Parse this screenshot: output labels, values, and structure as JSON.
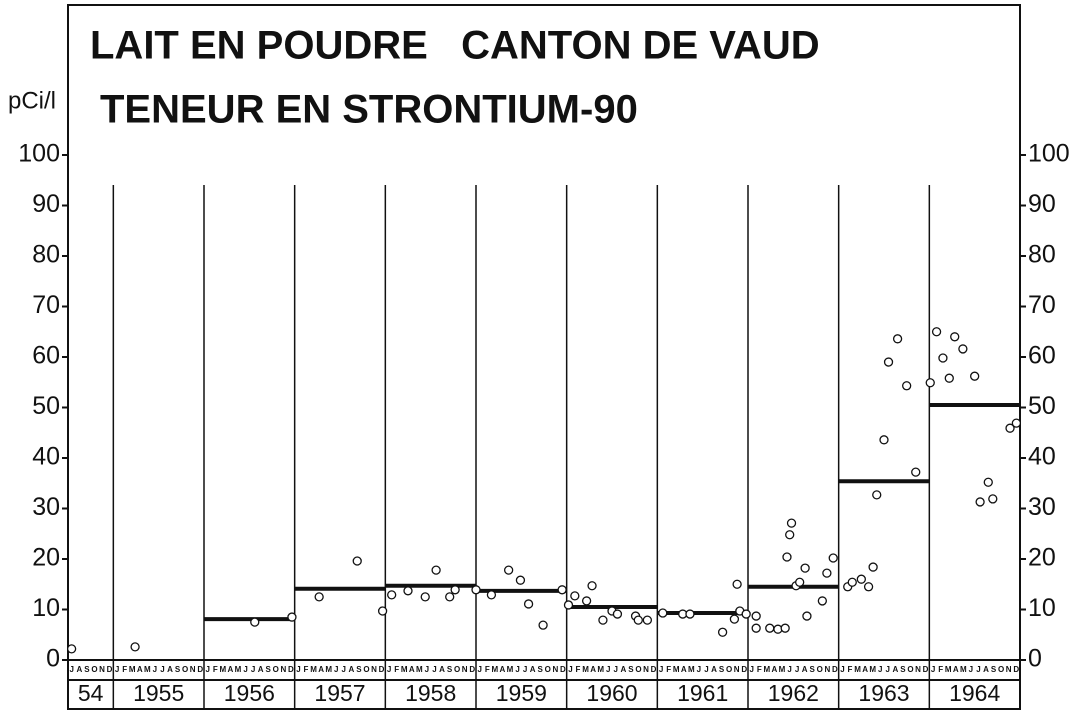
{
  "chart_data": {
    "type": "scatter",
    "title": "LAIT EN POUDRE   CANTON DE VAUD",
    "subtitle": "TENEUR EN STRONTIUM-90",
    "y_label": "pCi/l",
    "xlim": [
      1954.5,
      1965
    ],
    "ylim": [
      0,
      100
    ],
    "yticks": [
      0,
      10,
      20,
      30,
      40,
      50,
      60,
      70,
      80,
      90,
      100
    ],
    "months": [
      "J",
      "F",
      "M",
      "A",
      "M",
      "J",
      "J",
      "A",
      "S",
      "O",
      "N",
      "D"
    ],
    "year_bands": [
      {
        "start": 1954.5,
        "end": 1955,
        "label": "54"
      },
      {
        "start": 1955,
        "end": 1956,
        "label": "1955"
      },
      {
        "start": 1956,
        "end": 1957,
        "label": "1956"
      },
      {
        "start": 1957,
        "end": 1958,
        "label": "1957"
      },
      {
        "start": 1958,
        "end": 1959,
        "label": "1958"
      },
      {
        "start": 1959,
        "end": 1960,
        "label": "1959"
      },
      {
        "start": 1960,
        "end": 1961,
        "label": "1960"
      },
      {
        "start": 1961,
        "end": 1962,
        "label": "1961"
      },
      {
        "start": 1962,
        "end": 1963,
        "label": "1962"
      },
      {
        "start": 1963,
        "end": 1964,
        "label": "1963"
      },
      {
        "start": 1964,
        "end": 1965,
        "label": "1964"
      }
    ],
    "x": [
      1954.54,
      1955.24,
      1956.56,
      1956.97,
      1957.27,
      1957.69,
      1957.97,
      1958.07,
      1958.25,
      1958.44,
      1958.56,
      1958.71,
      1958.77,
      1959.0,
      1959.17,
      1959.36,
      1959.49,
      1959.58,
      1959.74,
      1959.95,
      1960.02,
      1960.09,
      1960.22,
      1960.28,
      1960.4,
      1960.5,
      1960.56,
      1960.76,
      1960.79,
      1960.89,
      1961.06,
      1961.28,
      1961.36,
      1961.72,
      1961.85,
      1961.88,
      1961.91,
      1961.98,
      1962.09,
      1962.09,
      1962.24,
      1962.33,
      1962.41,
      1962.43,
      1962.46,
      1962.48,
      1962.53,
      1962.57,
      1962.63,
      1962.65,
      1962.82,
      1962.87,
      1962.94,
      1963.1,
      1963.15,
      1963.25,
      1963.33,
      1963.38,
      1963.42,
      1963.5,
      1963.55,
      1963.65,
      1963.75,
      1963.85,
      1964.01,
      1964.08,
      1964.15,
      1964.22,
      1964.28,
      1964.37,
      1964.5,
      1964.56,
      1964.65,
      1964.7,
      1964.89,
      1964.96
    ],
    "values": [
      2.2,
      2.6,
      7.5,
      8.5,
      12.5,
      19.6,
      9.7,
      12.9,
      13.7,
      12.5,
      17.8,
      12.5,
      13.9,
      13.9,
      12.9,
      17.8,
      15.8,
      11.1,
      6.9,
      13.9,
      10.9,
      12.7,
      11.7,
      14.7,
      7.9,
      9.7,
      9.1,
      8.7,
      7.9,
      7.9,
      9.3,
      9.1,
      9.1,
      5.5,
      8.1,
      15.0,
      9.7,
      9.1,
      8.7,
      6.3,
      6.3,
      6.1,
      6.3,
      20.4,
      24.8,
      27.1,
      14.7,
      15.4,
      18.2,
      8.7,
      11.7,
      17.2,
      20.2,
      14.5,
      15.4,
      16.0,
      14.5,
      18.4,
      32.7,
      43.6,
      59.0,
      63.6,
      54.3,
      37.2,
      54.9,
      65.0,
      59.8,
      55.8,
      64.0,
      61.6,
      56.2,
      31.3,
      35.2,
      31.9,
      45.9,
      46.9
    ],
    "means": [
      {
        "start": 1956,
        "end": 1957,
        "value": 8.1
      },
      {
        "start": 1957,
        "end": 1958,
        "value": 14.1
      },
      {
        "start": 1958,
        "end": 1959,
        "value": 14.7
      },
      {
        "start": 1959,
        "end": 1960,
        "value": 13.7
      },
      {
        "start": 1960,
        "end": 1961,
        "value": 10.5
      },
      {
        "start": 1961,
        "end": 1962,
        "value": 9.3
      },
      {
        "start": 1962,
        "end": 1963,
        "value": 14.5
      },
      {
        "start": 1963,
        "end": 1964,
        "value": 35.4
      },
      {
        "start": 1964,
        "end": 1965,
        "value": 50.5
      }
    ],
    "marker_color": "#111111",
    "mean_color": "#111111"
  }
}
